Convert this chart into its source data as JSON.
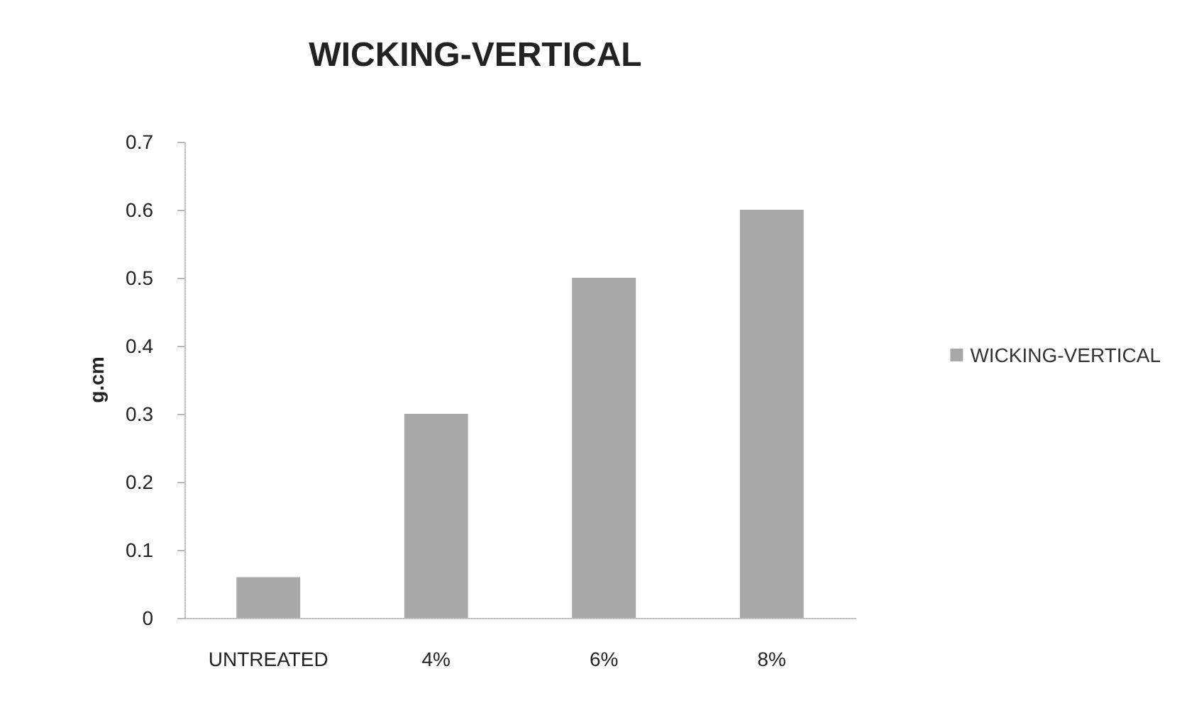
{
  "chart_data": {
    "type": "bar",
    "title": "WICKING-VERTICAL",
    "ylabel": "g.cm",
    "categories": [
      "UNTREATED",
      "4%",
      "6%",
      "8%"
    ],
    "series": [
      {
        "name": "WICKING-VERTICAL",
        "color": "#a8a8a8",
        "values": [
          0.06,
          0.3,
          0.5,
          0.6
        ]
      }
    ],
    "ylim": [
      0,
      0.7
    ],
    "yticks": [
      0,
      0.1,
      0.2,
      0.3,
      0.4,
      0.5,
      0.6,
      0.7
    ],
    "grid": false,
    "legend": "right"
  }
}
